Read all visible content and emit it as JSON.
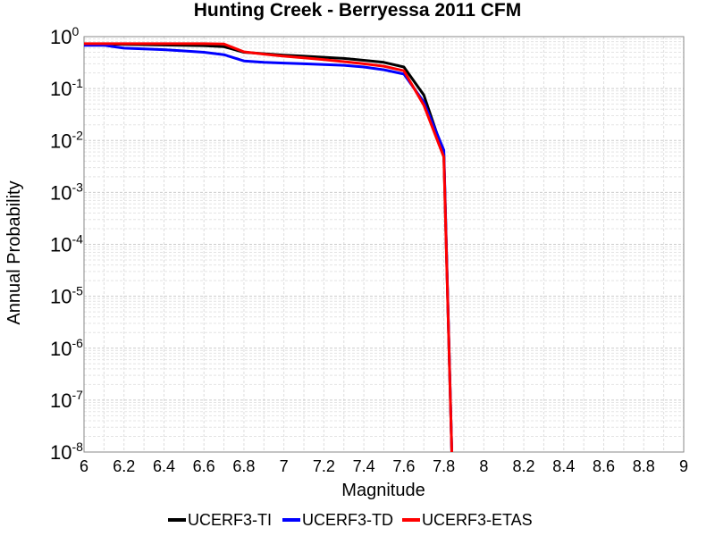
{
  "chart_data": {
    "type": "line",
    "title": "Hunting Creek - Berryessa 2011 CFM",
    "xlabel": "Magnitude",
    "ylabel": "Annual Probability",
    "xlim": [
      6,
      9
    ],
    "ylim": [
      1e-08,
      1
    ],
    "yscale": "log",
    "grid": true,
    "legend_position": "bottom",
    "xticks": [
      "6",
      "6.2",
      "6.4",
      "6.6",
      "6.8",
      "7",
      "7.2",
      "7.4",
      "7.6",
      "7.8",
      "8",
      "8.2",
      "8.4",
      "8.6",
      "8.8",
      "9"
    ],
    "yticks": [
      {
        "base": "10",
        "exp": "0"
      },
      {
        "base": "10",
        "exp": "-1"
      },
      {
        "base": "10",
        "exp": "-2"
      },
      {
        "base": "10",
        "exp": "-3"
      },
      {
        "base": "10",
        "exp": "-4"
      },
      {
        "base": "10",
        "exp": "-5"
      },
      {
        "base": "10",
        "exp": "-6"
      },
      {
        "base": "10",
        "exp": "-7"
      },
      {
        "base": "10",
        "exp": "-8"
      }
    ],
    "series": [
      {
        "name": "UCERF3-TI",
        "color": "#000000",
        "x": [
          6.0,
          6.1,
          6.2,
          6.3,
          6.4,
          6.5,
          6.6,
          6.7,
          6.8,
          6.9,
          7.0,
          7.1,
          7.2,
          7.3,
          7.4,
          7.5,
          7.6,
          7.7,
          7.8,
          7.84
        ],
        "y": [
          0.72,
          0.72,
          0.71,
          0.7,
          0.69,
          0.68,
          0.67,
          0.64,
          0.5,
          0.47,
          0.44,
          0.42,
          0.4,
          0.38,
          0.35,
          0.32,
          0.26,
          0.075,
          0.0055,
          1e-08
        ]
      },
      {
        "name": "UCERF3-TD",
        "color": "#0000ff",
        "x": [
          6.0,
          6.1,
          6.2,
          6.3,
          6.4,
          6.5,
          6.6,
          6.7,
          6.8,
          6.9,
          7.0,
          7.1,
          7.2,
          7.3,
          7.4,
          7.5,
          7.6,
          7.7,
          7.8,
          7.84
        ],
        "y": [
          0.68,
          0.68,
          0.6,
          0.58,
          0.56,
          0.53,
          0.5,
          0.45,
          0.34,
          0.32,
          0.31,
          0.3,
          0.29,
          0.28,
          0.26,
          0.23,
          0.19,
          0.055,
          0.0065,
          1e-08
        ]
      },
      {
        "name": "UCERF3-ETAS",
        "color": "#ff0000",
        "x": [
          6.0,
          6.1,
          6.2,
          6.3,
          6.4,
          6.5,
          6.6,
          6.7,
          6.8,
          6.9,
          7.0,
          7.1,
          7.2,
          7.3,
          7.4,
          7.5,
          7.6,
          7.7,
          7.8,
          7.84
        ],
        "y": [
          0.73,
          0.73,
          0.73,
          0.73,
          0.73,
          0.73,
          0.73,
          0.72,
          0.51,
          0.46,
          0.42,
          0.39,
          0.36,
          0.33,
          0.3,
          0.27,
          0.22,
          0.048,
          0.0048,
          1e-08
        ]
      }
    ]
  }
}
